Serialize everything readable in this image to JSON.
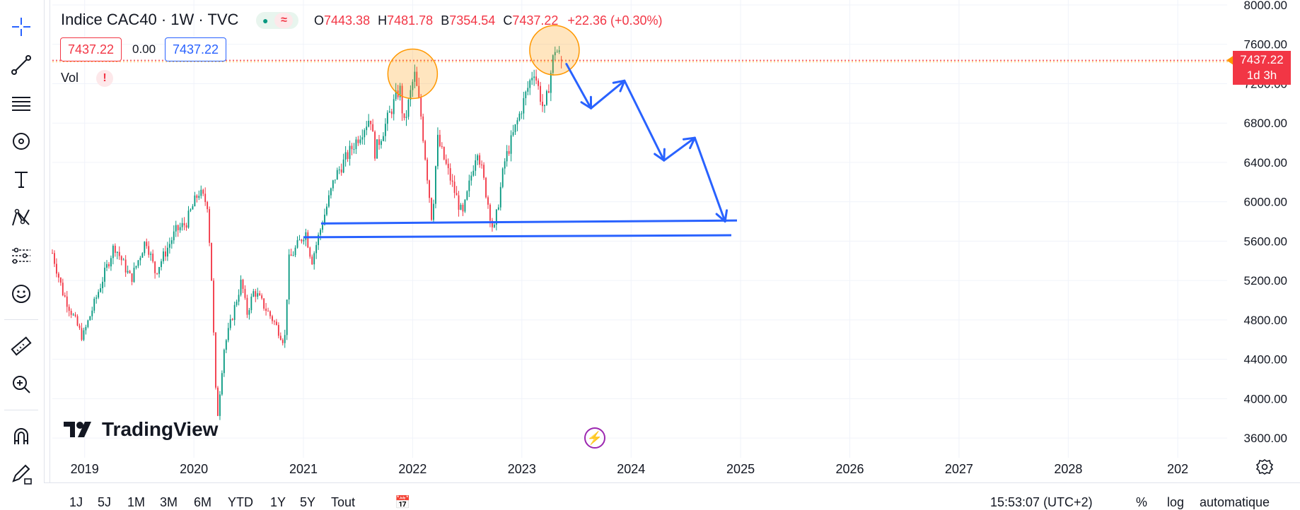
{
  "symbol": {
    "title": "Indice CAC40 · 1W · TVC",
    "ohlc": [
      {
        "k": "O",
        "v": "7443.38"
      },
      {
        "k": "H",
        "v": "7481.78"
      },
      {
        "k": "B",
        "v": "7354.54"
      },
      {
        "k": "C",
        "v": "7437.22"
      }
    ],
    "change": "+22.36 (+0.30%)",
    "sell_price": "7437.22",
    "spread": "0.00",
    "buy_price": "7437.22",
    "volume_label": "Vol",
    "volume_warning": "!",
    "live_icon": "●",
    "pill_icon": "≈"
  },
  "last_price": {
    "value": "7437.22",
    "countdown": "1d 3h"
  },
  "logo_text": "TradingView",
  "flash_icon": "⚡",
  "bottom_bar": {
    "ranges": [
      "1J",
      "5J",
      "1M",
      "3M",
      "6M",
      "YTD",
      "1Y",
      "5Y",
      "Tout"
    ],
    "time": "15:53:07 (UTC+2)",
    "percent": "%",
    "log": "log",
    "auto": "automatique"
  },
  "toolbar": [
    "crosshair-icon",
    "trendline-icon",
    "fib-icon",
    "brush-icon",
    "text-icon",
    "pattern-icon",
    "forecast-icon",
    "emoji-icon",
    "ruler-icon",
    "zoom-icon",
    "magnet-icon",
    "lock-draw-icon"
  ],
  "colors": {
    "up": "#089981",
    "down": "#f23645",
    "drawing": "#2962ff",
    "highlight": "#ff9800",
    "grid": "#f0f3fa"
  },
  "chart_data": {
    "type": "candlestick",
    "title": "Indice CAC40 · 1W · TVC",
    "x_axis": {
      "labels": [
        "2019",
        "2020",
        "2021",
        "2022",
        "2023",
        "2024",
        "2025",
        "2026",
        "2027",
        "2028",
        "202"
      ],
      "range": [
        "2018-09-15",
        "2029-06-15"
      ]
    },
    "y_axis": {
      "ticks": [
        3600,
        4000,
        4400,
        4800,
        5200,
        5600,
        6000,
        6400,
        6800,
        7200,
        7600,
        8000
      ],
      "tick_labels": [
        "3600.00",
        "4000.00",
        "4400.00",
        "4800.00",
        "5200.00",
        "5600.00",
        "6000.00",
        "6400.00",
        "6800.00",
        "7200.00",
        "7600.00",
        "8000.00"
      ],
      "range": [
        3400,
        8050
      ],
      "side": "right"
    },
    "path": [
      [
        "2018-09-15",
        5480
      ],
      [
        "2018-10-20",
        5080
      ],
      [
        "2018-12-25",
        4620
      ],
      [
        "2019-04-10",
        5560
      ],
      [
        "2019-06-05",
        5210
      ],
      [
        "2019-07-25",
        5620
      ],
      [
        "2019-08-25",
        5280
      ],
      [
        "2019-11-01",
        5700
      ],
      [
        "2019-12-05",
        5780
      ],
      [
        "2020-01-17",
        6100
      ],
      [
        "2020-02-15",
        5980
      ],
      [
        "2020-02-28",
        5300
      ],
      [
        "2020-03-18",
        3750
      ],
      [
        "2020-04-10",
        4500
      ],
      [
        "2020-06-08",
        5200
      ],
      [
        "2020-06-26",
        4860
      ],
      [
        "2020-07-20",
        5100
      ],
      [
        "2020-09-25",
        4780
      ],
      [
        "2020-10-30",
        4570
      ],
      [
        "2020-11-13",
        5400
      ],
      [
        "2021-01-08",
        5700
      ],
      [
        "2021-01-29",
        5400
      ],
      [
        "2021-04-16",
        6250
      ],
      [
        "2021-08-13",
        6870
      ],
      [
        "2021-08-27",
        6500
      ],
      [
        "2021-11-19",
        7160
      ],
      [
        "2021-12-03",
        6770
      ],
      [
        "2022-01-07",
        7300
      ],
      [
        "2022-01-28",
        6900
      ],
      [
        "2022-03-07",
        5800
      ],
      [
        "2022-03-25",
        6640
      ],
      [
        "2022-06-17",
        5850
      ],
      [
        "2022-08-05",
        6560
      ],
      [
        "2022-09-29",
        5680
      ],
      [
        "2022-11-04",
        6400
      ],
      [
        "2023-02-10",
        7350
      ],
      [
        "2023-03-17",
        6900
      ],
      [
        "2023-04-21",
        7560
      ],
      [
        "2023-05-19",
        7437
      ]
    ],
    "last_price": 7437.22,
    "annotations": {
      "circles": [
        {
          "date": "2022-01-01",
          "price": 7300
        },
        {
          "date": "2023-04-20",
          "price": 7540
        }
      ],
      "support_lines": [
        {
          "from": [
            "2021-03-01",
            5780
          ],
          "to": [
            "2024-12-20",
            5810
          ]
        },
        {
          "from": [
            "2021-01-01",
            5640
          ],
          "to": [
            "2024-12-01",
            5660
          ]
        }
      ],
      "projection": [
        [
          "2023-05-30",
          7400
        ],
        [
          "2023-08-20",
          6950
        ],
        [
          "2023-12-10",
          7230
        ],
        [
          "2024-04-20",
          6420
        ],
        [
          "2024-08-01",
          6650
        ],
        [
          "2024-11-10",
          5800
        ]
      ]
    },
    "legend_placement": "top-left",
    "grid": true
  }
}
